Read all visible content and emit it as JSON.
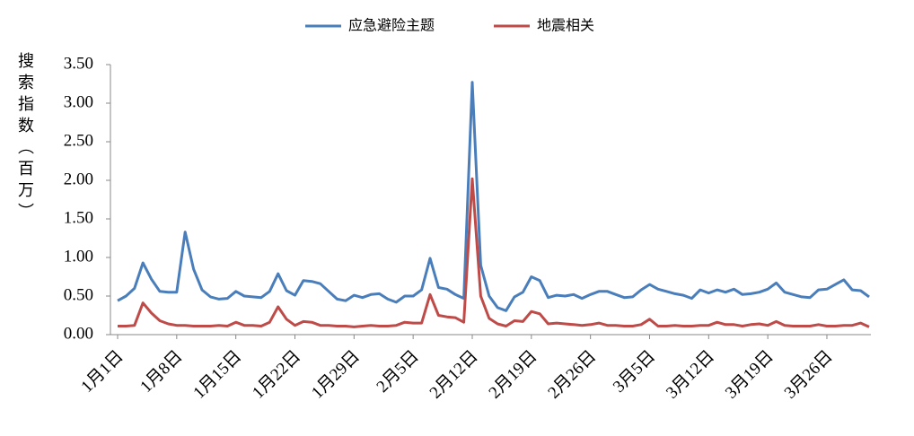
{
  "chart_data": {
    "type": "line",
    "y_label": "搜索指数（百万）",
    "categories": [
      "1月1日",
      null,
      null,
      null,
      null,
      null,
      null,
      "1月8日",
      null,
      null,
      null,
      null,
      null,
      null,
      "1月15日",
      null,
      null,
      null,
      null,
      null,
      null,
      "1月22日",
      null,
      null,
      null,
      null,
      null,
      null,
      "1月29日",
      null,
      null,
      null,
      null,
      null,
      null,
      "2月5日",
      null,
      null,
      null,
      null,
      null,
      null,
      "2月12日",
      null,
      null,
      null,
      null,
      null,
      null,
      "2月19日",
      null,
      null,
      null,
      null,
      null,
      null,
      "2月26日",
      null,
      null,
      null,
      null,
      null,
      null,
      "3月5日",
      null,
      null,
      null,
      null,
      null,
      null,
      "3月12日",
      null,
      null,
      null,
      null,
      null,
      null,
      "3月19日",
      null,
      null,
      null,
      null,
      null,
      null,
      "3月26日",
      null,
      null,
      null,
      null,
      null
    ],
    "series": [
      {
        "name": "应急避险主题",
        "color": "#4a7ebb",
        "values": [
          0.44,
          0.5,
          0.6,
          0.93,
          0.72,
          0.56,
          0.55,
          0.55,
          1.33,
          0.85,
          0.58,
          0.49,
          0.46,
          0.47,
          0.56,
          0.5,
          0.49,
          0.48,
          0.56,
          0.79,
          0.57,
          0.51,
          0.7,
          0.69,
          0.66,
          0.56,
          0.46,
          0.44,
          0.51,
          0.48,
          0.52,
          0.53,
          0.46,
          0.42,
          0.5,
          0.5,
          0.58,
          0.99,
          0.61,
          0.59,
          0.52,
          0.47,
          3.27,
          0.9,
          0.5,
          0.35,
          0.31,
          0.49,
          0.55,
          0.75,
          0.7,
          0.48,
          0.51,
          0.5,
          0.52,
          0.47,
          0.52,
          0.56,
          0.56,
          0.52,
          0.48,
          0.49,
          0.58,
          0.65,
          0.59,
          0.56,
          0.53,
          0.51,
          0.47,
          0.58,
          0.54,
          0.58,
          0.55,
          0.59,
          0.52,
          0.53,
          0.55,
          0.59,
          0.67,
          0.55,
          0.52,
          0.49,
          0.48,
          0.58,
          0.59,
          0.65,
          0.71,
          0.58,
          0.57,
          0.49
        ]
      },
      {
        "name": "地震相关",
        "color": "#be4b48",
        "values": [
          0.11,
          0.11,
          0.12,
          0.41,
          0.28,
          0.18,
          0.14,
          0.12,
          0.12,
          0.11,
          0.11,
          0.11,
          0.12,
          0.11,
          0.16,
          0.12,
          0.12,
          0.11,
          0.16,
          0.36,
          0.2,
          0.12,
          0.17,
          0.16,
          0.12,
          0.12,
          0.11,
          0.11,
          0.1,
          0.11,
          0.12,
          0.11,
          0.11,
          0.12,
          0.16,
          0.15,
          0.15,
          0.52,
          0.25,
          0.23,
          0.22,
          0.16,
          2.02,
          0.5,
          0.21,
          0.14,
          0.11,
          0.18,
          0.17,
          0.3,
          0.27,
          0.14,
          0.15,
          0.14,
          0.13,
          0.12,
          0.13,
          0.15,
          0.12,
          0.12,
          0.11,
          0.11,
          0.13,
          0.2,
          0.11,
          0.11,
          0.12,
          0.11,
          0.11,
          0.12,
          0.12,
          0.16,
          0.13,
          0.13,
          0.11,
          0.13,
          0.14,
          0.12,
          0.17,
          0.12,
          0.11,
          0.11,
          0.11,
          0.13,
          0.11,
          0.11,
          0.12,
          0.12,
          0.15,
          0.1
        ]
      }
    ],
    "ylim": [
      0,
      3.5
    ],
    "yticks": [
      {
        "value": 0,
        "label": "0.00"
      },
      {
        "value": 0.5,
        "label": "0.50"
      },
      {
        "value": 1,
        "label": "1.00"
      },
      {
        "value": 1.5,
        "label": "1.50"
      },
      {
        "value": 2,
        "label": "2.00"
      },
      {
        "value": 2.5,
        "label": "2.50"
      },
      {
        "value": 3,
        "label": "3.00"
      },
      {
        "value": 3.5,
        "label": "3.50"
      }
    ],
    "legend": "top",
    "grid": false
  }
}
